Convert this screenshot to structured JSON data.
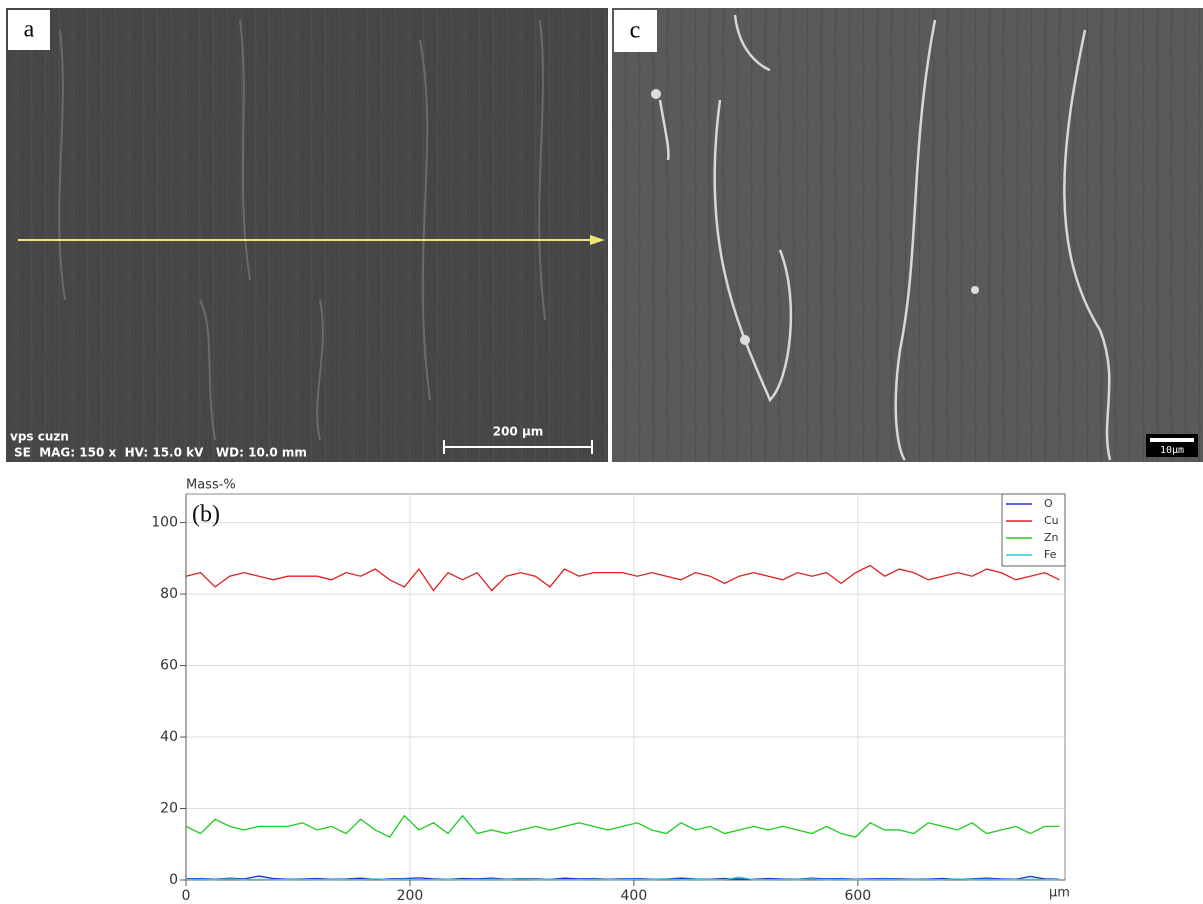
{
  "images": {
    "a": {
      "label": "a",
      "sample": "vps cuzn",
      "info": "SE  MAG: 150 x  HV: 15.0 kV   WD: 10.0 mm",
      "scale": "200 µm"
    },
    "c": {
      "label": "c",
      "scale": "10µm"
    }
  },
  "chart_data": {
    "type": "line",
    "panel_label": "(b)",
    "y_label": "Mass-%",
    "x_label": "µm",
    "x": [
      0,
      13,
      26,
      39,
      52,
      65,
      78,
      91,
      104,
      117,
      130,
      143,
      156,
      169,
      182,
      195,
      208,
      221,
      234,
      247,
      260,
      273,
      286,
      299,
      312,
      325,
      338,
      351,
      364,
      377,
      390,
      403,
      416,
      429,
      442,
      455,
      468,
      481,
      494,
      507,
      520,
      533,
      546,
      559,
      572,
      585,
      598,
      611,
      624,
      637,
      650,
      663,
      676,
      689,
      702,
      715,
      728,
      741,
      754,
      767,
      780
    ],
    "xlim": [
      0,
      785
    ],
    "ylim": [
      0,
      108
    ],
    "xticks": [
      0,
      200,
      400,
      600
    ],
    "yticks": [
      0,
      20,
      40,
      60,
      80,
      100
    ],
    "grid": true,
    "legend": "top-right",
    "series": [
      {
        "name": "O",
        "color": "#2b2bd0",
        "values": [
          0.3,
          0.4,
          0.2,
          0.5,
          0.3,
          1.1,
          0.4,
          0.2,
          0.3,
          0.4,
          0.2,
          0.3,
          0.5,
          0.2,
          0.3,
          0.4,
          0.6,
          0.3,
          0.2,
          0.4,
          0.3,
          0.5,
          0.2,
          0.4,
          0.3,
          0.2,
          0.5,
          0.3,
          0.4,
          0.2,
          0.3,
          0.4,
          0.2,
          0.3,
          0.5,
          0.3,
          0.2,
          0.4,
          0.3,
          0.2,
          0.4,
          0.3,
          0.2,
          0.5,
          0.3,
          0.4,
          0.2,
          0.3,
          0.4,
          0.3,
          0.2,
          0.3,
          0.4,
          0.2,
          0.3,
          0.5,
          0.3,
          0.2,
          1.0,
          0.3,
          0.2
        ]
      },
      {
        "name": "Cu",
        "color": "#e02020",
        "values": [
          85,
          86,
          82,
          85,
          86,
          85,
          84,
          85,
          85,
          85,
          84,
          86,
          85,
          87,
          84,
          82,
          87,
          81,
          86,
          84,
          86,
          81,
          85,
          86,
          85,
          82,
          87,
          85,
          86,
          86,
          86,
          85,
          86,
          85,
          84,
          86,
          85,
          83,
          85,
          86,
          85,
          84,
          86,
          85,
          86,
          83,
          86,
          88,
          85,
          87,
          86,
          84,
          85,
          86,
          85,
          87,
          86,
          84,
          85,
          86,
          84
        ]
      },
      {
        "name": "Zn",
        "color": "#22cc22",
        "values": [
          15,
          13,
          17,
          15,
          14,
          15,
          15,
          15,
          16,
          14,
          15,
          13,
          17,
          14,
          12,
          18,
          14,
          16,
          13,
          18,
          13,
          14,
          13,
          14,
          15,
          14,
          15,
          16,
          15,
          14,
          15,
          16,
          14,
          13,
          16,
          14,
          15,
          13,
          14,
          15,
          14,
          15,
          14,
          13,
          15,
          13,
          12,
          16,
          14,
          14,
          13,
          16,
          15,
          14,
          16,
          13,
          14,
          15,
          13,
          15,
          15
        ]
      },
      {
        "name": "Fe",
        "color": "#22d0d8",
        "values": [
          0.1,
          0.2,
          0.1,
          0.3,
          0.1,
          0.2,
          0.1,
          0.1,
          0.2,
          0.1,
          0.1,
          0.2,
          0.1,
          0.3,
          0.1,
          0.2,
          0.1,
          0.1,
          0.2,
          0.1,
          0.1,
          0.2,
          0.1,
          0.3,
          0.1,
          0.2,
          0.1,
          0.1,
          0.2,
          0.1,
          0.1,
          0.2,
          0.1,
          0.3,
          0.1,
          0.2,
          0.1,
          0.1,
          0.8,
          0.1,
          0.1,
          0.2,
          0.1,
          0.3,
          0.1,
          0.2,
          0.1,
          0.1,
          0.2,
          0.1,
          0.1,
          0.2,
          0.1,
          0.3,
          0.1,
          0.2,
          0.1,
          0.1,
          0.2,
          0.1,
          0.1
        ]
      }
    ]
  }
}
